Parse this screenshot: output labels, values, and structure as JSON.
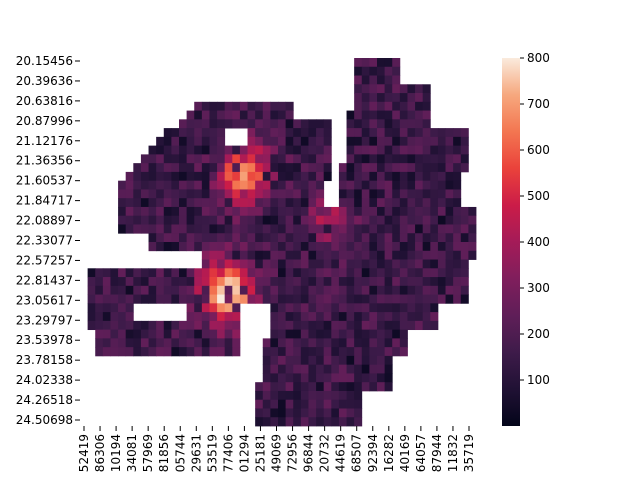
{
  "chart_data": {
    "type": "heatmap",
    "title": "",
    "xlabel": "",
    "ylabel": "",
    "y_tick_labels": [
      "20.15456",
      "20.39636",
      "20.63816",
      "20.87996",
      "21.12176",
      "21.36356",
      "21.60537",
      "21.84717",
      "22.08897",
      "22.33077",
      "22.57257",
      "22.81437",
      "23.05617",
      "23.29797",
      "23.53978",
      "23.78158",
      "24.02338",
      "24.26518",
      "24.50698"
    ],
    "x_tick_labels": [
      "52419",
      "86306",
      "10194",
      "34081",
      "57969",
      "81856",
      "05744",
      "29631",
      "53519",
      "77406",
      "01294",
      "25181",
      "49069",
      "72956",
      "96844",
      "20732",
      "44619",
      "68507",
      "92394",
      "16282",
      "40169",
      "64057",
      "87944",
      "11832",
      "35719"
    ],
    "colorbar": {
      "ticks": [
        100,
        200,
        300,
        400,
        500,
        600,
        700,
        800
      ],
      "min": 0,
      "max": 800,
      "colormap": "rocket"
    },
    "grid_shape": [
      42,
      52
    ],
    "values_note_unused": "",
    "hotspots": [
      {
        "row": 27,
        "col": 19,
        "value": 780
      },
      {
        "row": 25,
        "col": 18,
        "value": 520
      },
      {
        "row": 12,
        "col": 22,
        "value": 560
      },
      {
        "row": 14,
        "col": 20,
        "value": 470
      },
      {
        "row": 18,
        "col": 32,
        "value": 420
      }
    ]
  }
}
